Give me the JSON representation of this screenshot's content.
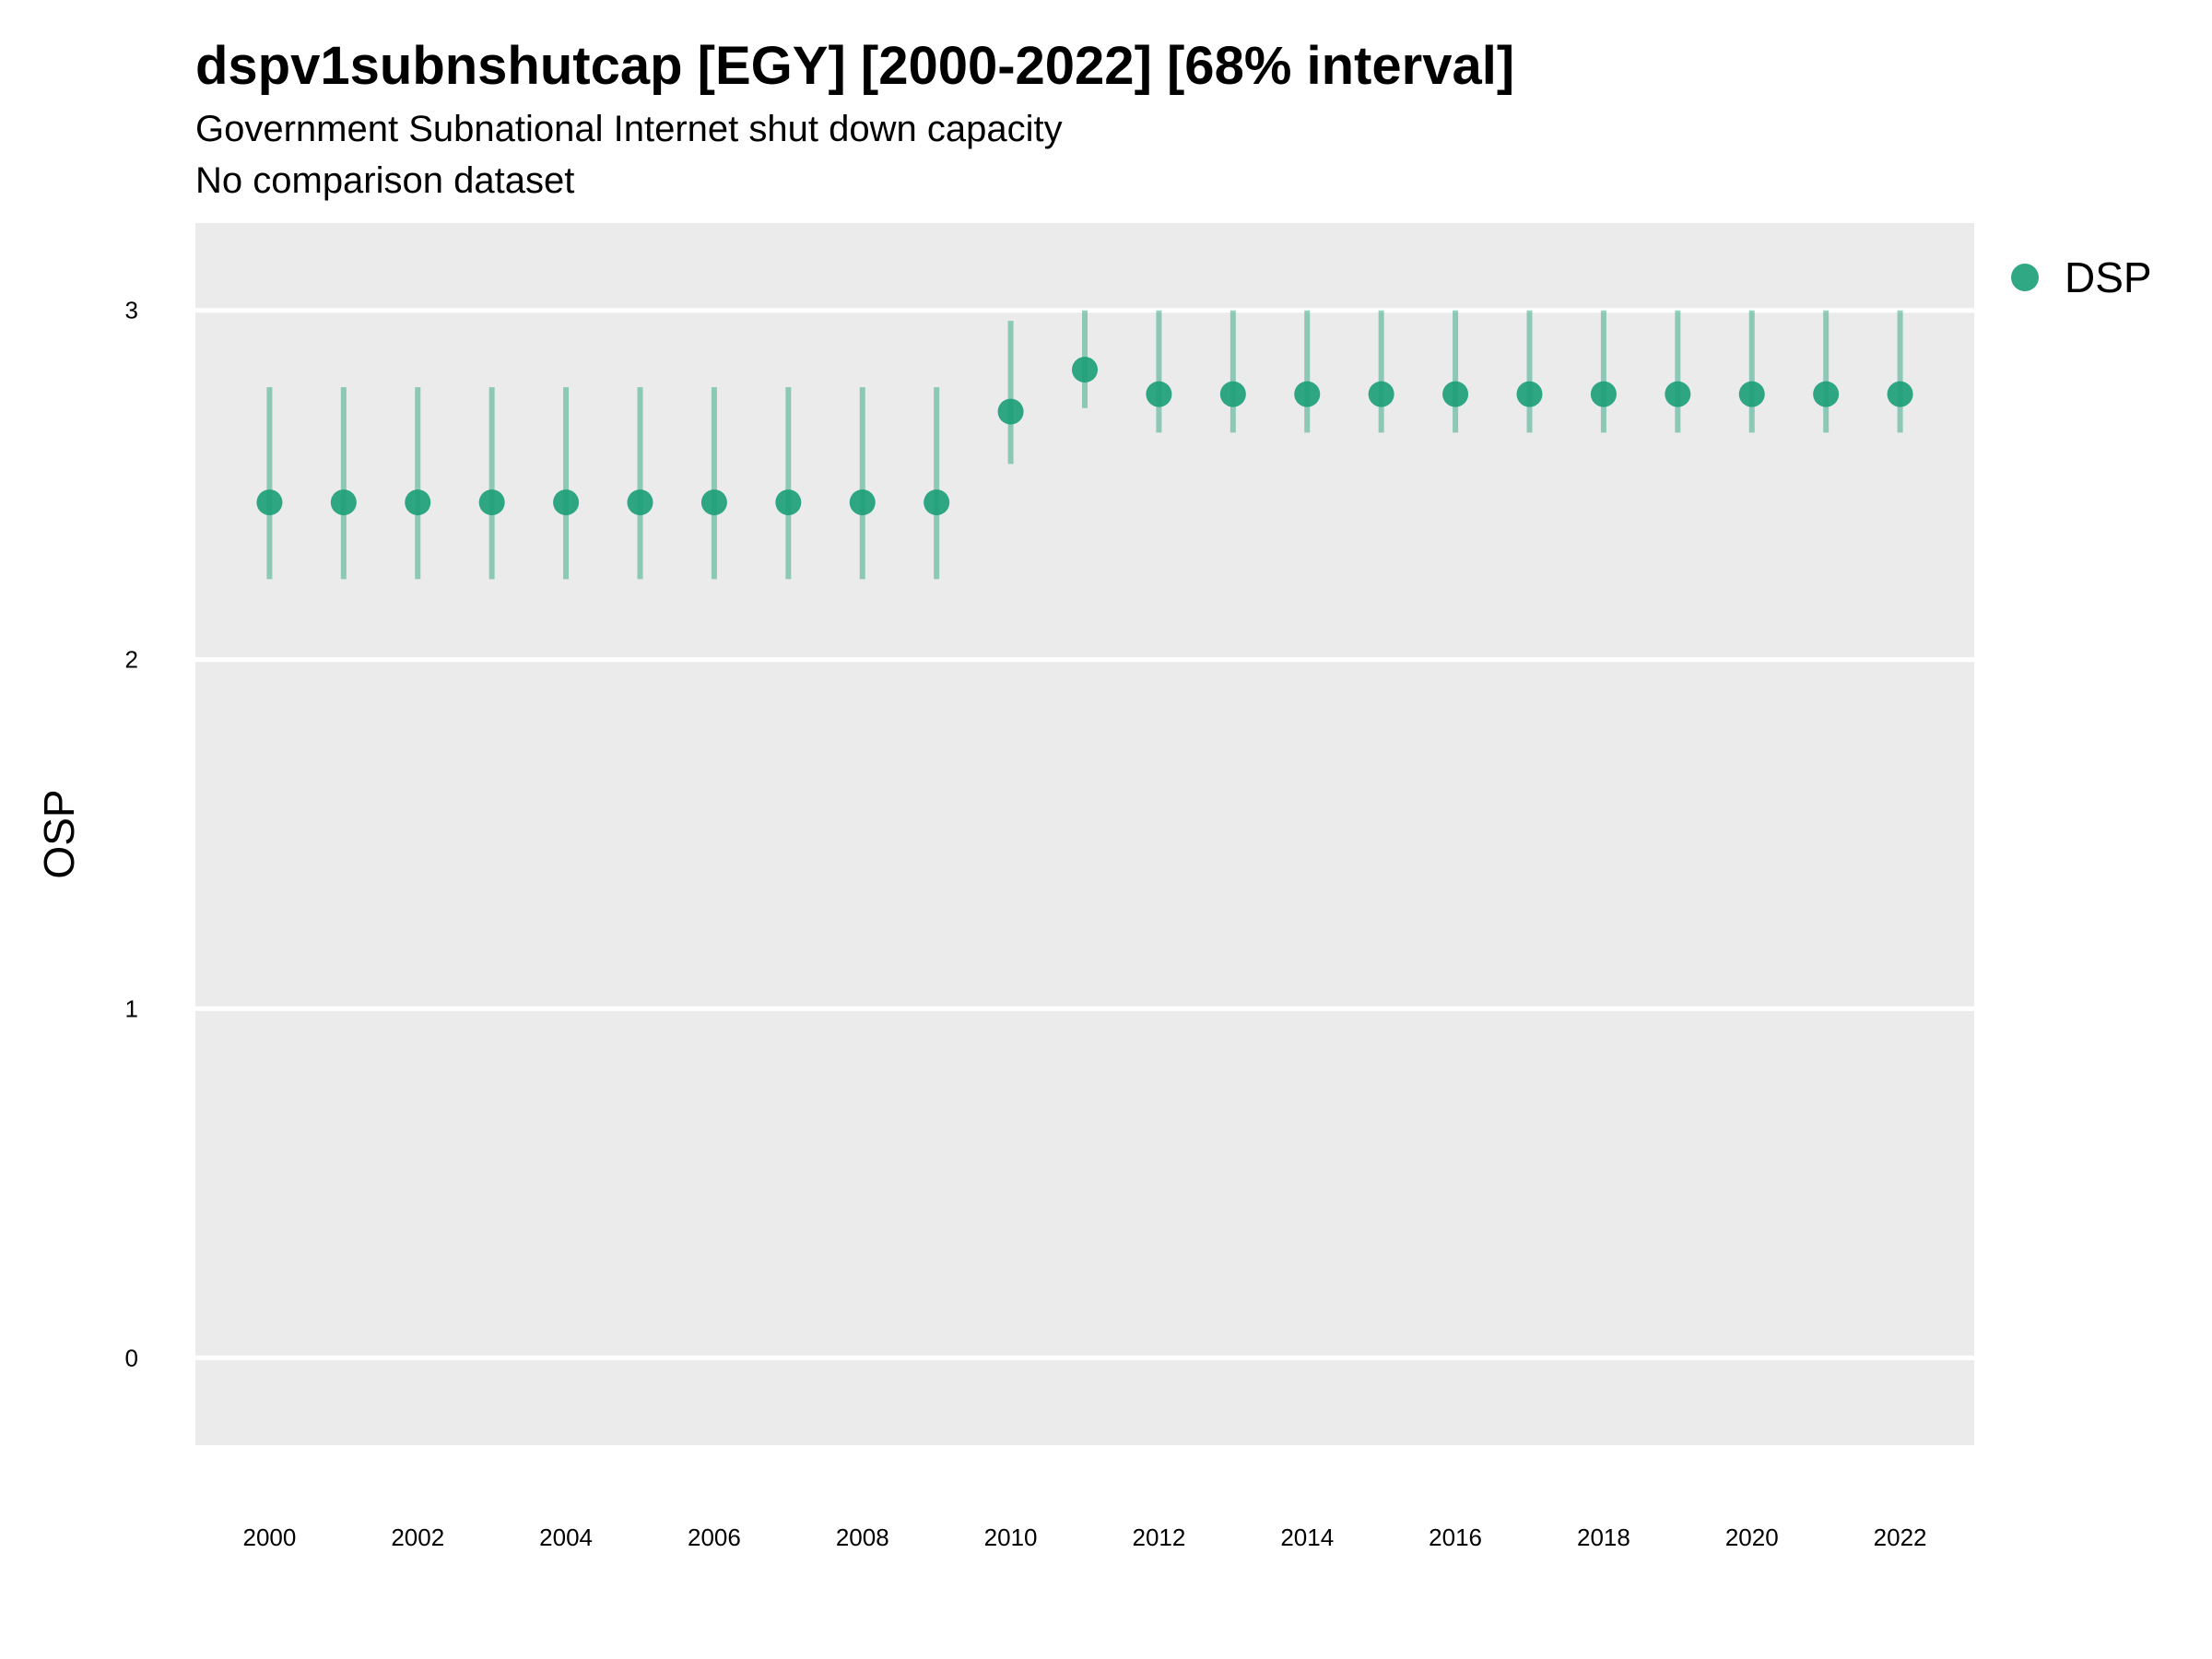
{
  "chart_data": {
    "type": "scatter",
    "title": "dspv1subnshutcap [EGY] [2000-2022] [68% interval]",
    "subtitle": "Government Subnational Internet shut down capacity",
    "caption": "No comparison dataset",
    "xlabel": "",
    "ylabel": "OSP",
    "xlim": [
      1999.0,
      2023.0
    ],
    "ylim": [
      -0.25,
      3.25
    ],
    "x_ticks": [
      2000,
      2002,
      2004,
      2006,
      2008,
      2010,
      2012,
      2014,
      2016,
      2018,
      2020,
      2022
    ],
    "y_ticks": [
      0,
      1,
      2,
      3
    ],
    "grid": true,
    "legend_position": "top-right",
    "series": [
      {
        "name": "DSP",
        "color": "#1b9e77",
        "x": [
          2000,
          2001,
          2002,
          2003,
          2004,
          2005,
          2006,
          2007,
          2008,
          2009,
          2010,
          2011,
          2012,
          2013,
          2014,
          2015,
          2016,
          2017,
          2018,
          2019,
          2020,
          2021,
          2022
        ],
        "y": [
          2.45,
          2.45,
          2.45,
          2.45,
          2.45,
          2.45,
          2.45,
          2.45,
          2.45,
          2.45,
          2.71,
          2.83,
          2.76,
          2.76,
          2.76,
          2.76,
          2.76,
          2.76,
          2.76,
          2.76,
          2.76,
          2.76,
          2.76
        ],
        "lower": [
          2.23,
          2.23,
          2.23,
          2.23,
          2.23,
          2.23,
          2.23,
          2.23,
          2.23,
          2.23,
          2.56,
          2.72,
          2.65,
          2.65,
          2.65,
          2.65,
          2.65,
          2.65,
          2.65,
          2.65,
          2.65,
          2.65,
          2.65
        ],
        "upper": [
          2.78,
          2.78,
          2.78,
          2.78,
          2.78,
          2.78,
          2.78,
          2.78,
          2.78,
          2.78,
          2.97,
          3.0,
          3.0,
          3.0,
          3.0,
          3.0,
          3.0,
          3.0,
          3.0,
          3.0,
          3.0,
          3.0,
          3.0
        ]
      }
    ]
  }
}
